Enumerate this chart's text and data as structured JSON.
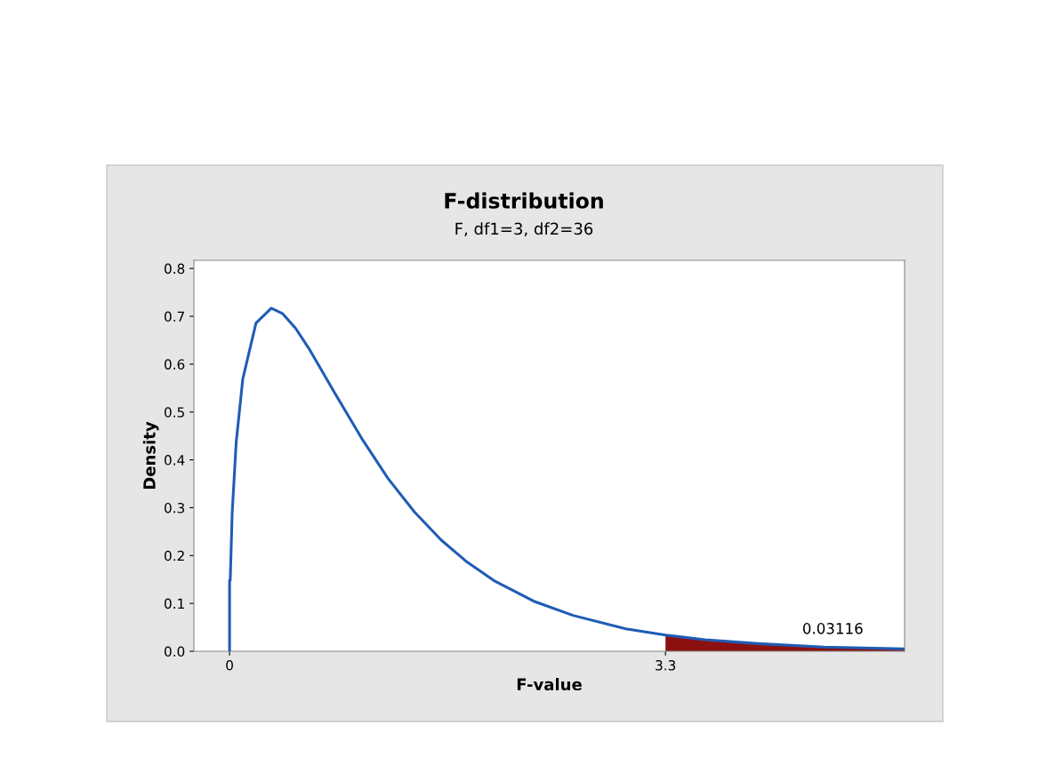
{
  "chart_data": {
    "type": "line",
    "title": "F-distribution",
    "subtitle": "F, df1=3, df2=36",
    "xlabel": "F-value",
    "ylabel": "Density",
    "series": [
      {
        "color": "#1f5cb5",
        "x": [
          0,
          0,
          0.005,
          0.02,
          0.05,
          0.1,
          0.2,
          0.316,
          0.4,
          0.5,
          0.6,
          0.8,
          1.0,
          1.2,
          1.4,
          1.6,
          1.8,
          2.0,
          2.3,
          2.6,
          3.0,
          3.3,
          3.6,
          4.0,
          4.5,
          5.11
        ],
        "values": [
          0,
          0.148,
          0.148,
          0.29,
          0.436,
          0.569,
          0.686,
          0.717,
          0.706,
          0.675,
          0.633,
          0.538,
          0.445,
          0.361,
          0.291,
          0.233,
          0.186,
          0.148,
          0.105,
          0.075,
          0.047,
          0.034,
          0.024,
          0.016,
          0.009,
          0.005
        ]
      },
      {
        "type": "area",
        "color": "#8b1111",
        "x": [
          3.3,
          3.6,
          4.0,
          4.5,
          5.11
        ],
        "values": [
          0.034,
          0.024,
          0.016,
          0.009,
          0.005
        ]
      }
    ],
    "annotations": [
      "0.03116"
    ],
    "xlim": [
      -0.27,
      5.11
    ],
    "xticks": [
      0,
      3.3
    ],
    "ylim": [
      0,
      0.817
    ],
    "yticks": [
      {
        "value": 0,
        "label": "0.0"
      },
      0.1,
      0.2,
      0.3,
      0.4,
      0.5,
      0.6,
      0.7,
      0.8
    ],
    "grid": false,
    "legend": false
  }
}
